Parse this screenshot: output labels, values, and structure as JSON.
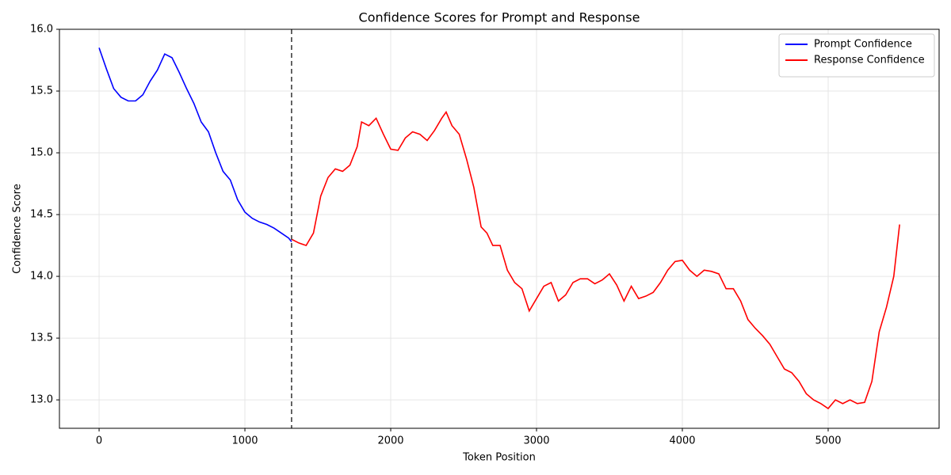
{
  "chart_data": {
    "type": "line",
    "title": "Confidence Scores for Prompt and Response",
    "xlabel": "Token Position",
    "ylabel": "Confidence Score",
    "xlim": [
      -272,
      5761
    ],
    "ylim": [
      12.77,
      16.0
    ],
    "xticks": [
      0,
      1000,
      2000,
      3000,
      4000,
      5000
    ],
    "yticks": [
      {
        "value": 13,
        "label": "13.0"
      },
      13.5,
      {
        "value": 14,
        "label": "14.0"
      },
      14.5,
      {
        "value": 15,
        "label": "15.0"
      },
      15.5,
      {
        "value": 16,
        "label": "16.0"
      }
    ],
    "grid": true,
    "legend": "upper right",
    "divider_x": 1320,
    "series": [
      {
        "name": "Prompt Confidence",
        "color": "#0000ff",
        "x": [
          0,
          50,
          100,
          150,
          200,
          250,
          300,
          350,
          400,
          450,
          500,
          550,
          600,
          650,
          700,
          750,
          800,
          850,
          900,
          950,
          1000,
          1050,
          1100,
          1150,
          1200,
          1250,
          1300,
          1320
        ],
        "values": [
          15.85,
          15.68,
          15.52,
          15.45,
          15.42,
          15.42,
          15.47,
          15.58,
          15.67,
          15.8,
          15.77,
          15.65,
          15.52,
          15.4,
          15.25,
          15.17,
          15.0,
          14.85,
          14.78,
          14.62,
          14.52,
          14.47,
          14.44,
          14.42,
          14.39,
          14.35,
          14.31,
          14.28
        ]
      },
      {
        "name": "Response Confidence",
        "color": "#ff0000",
        "x": [
          1320,
          1370,
          1420,
          1470,
          1520,
          1570,
          1620,
          1670,
          1720,
          1770,
          1800,
          1850,
          1900,
          1950,
          2000,
          2050,
          2100,
          2150,
          2200,
          2250,
          2300,
          2350,
          2380,
          2420,
          2470,
          2520,
          2570,
          2620,
          2660,
          2700,
          2750,
          2800,
          2850,
          2900,
          2950,
          3000,
          3050,
          3100,
          3150,
          3200,
          3250,
          3300,
          3350,
          3400,
          3450,
          3500,
          3550,
          3600,
          3650,
          3700,
          3750,
          3800,
          3850,
          3900,
          3950,
          4000,
          4050,
          4100,
          4150,
          4200,
          4250,
          4300,
          4350,
          4400,
          4450,
          4500,
          4550,
          4600,
          4650,
          4700,
          4750,
          4800,
          4850,
          4900,
          4950,
          5000,
          5050,
          5100,
          5150,
          5200,
          5250,
          5300,
          5350,
          5400,
          5450,
          5490
        ],
        "values": [
          14.3,
          14.27,
          14.25,
          14.35,
          14.65,
          14.8,
          14.87,
          14.85,
          14.9,
          15.05,
          15.25,
          15.22,
          15.28,
          15.15,
          15.03,
          15.02,
          15.12,
          15.17,
          15.15,
          15.1,
          15.18,
          15.28,
          15.33,
          15.22,
          15.15,
          14.95,
          14.72,
          14.4,
          14.35,
          14.25,
          14.25,
          14.05,
          13.95,
          13.9,
          13.72,
          13.82,
          13.92,
          13.95,
          13.8,
          13.85,
          13.95,
          13.98,
          13.98,
          13.94,
          13.97,
          14.02,
          13.93,
          13.8,
          13.92,
          13.82,
          13.84,
          13.87,
          13.95,
          14.05,
          14.12,
          14.13,
          14.05,
          14.0,
          14.05,
          14.04,
          14.02,
          13.9,
          13.9,
          13.8,
          13.65,
          13.58,
          13.52,
          13.45,
          13.35,
          13.25,
          13.22,
          13.15,
          13.05,
          13.0,
          12.97,
          12.93,
          13.0,
          12.97,
          13.0,
          12.97,
          12.98,
          13.15,
          13.55,
          13.75,
          14.0,
          14.42
        ]
      }
    ]
  }
}
